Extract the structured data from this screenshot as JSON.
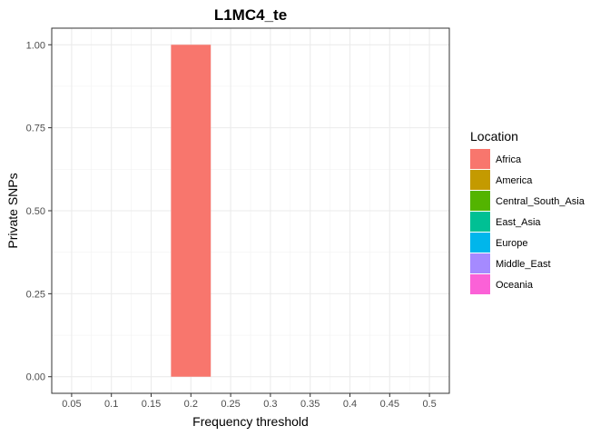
{
  "chart_data": {
    "type": "bar",
    "title": "L1MC4_te",
    "xlabel": "Frequency threshold",
    "ylabel": "Private SNPs",
    "x_ticks": [
      "0.05",
      "0.1",
      "0.15",
      "0.2",
      "0.25",
      "0.3",
      "0.35",
      "0.4",
      "0.45",
      "0.5"
    ],
    "y_ticks": [
      "0.00",
      "0.25",
      "0.50",
      "0.75",
      "1.00"
    ],
    "xlim": [
      0.025,
      0.525
    ],
    "ylim": [
      -0.05,
      1.05
    ],
    "grid": true,
    "legend_position": "right",
    "series": [
      {
        "name": "Africa",
        "color": "#F8766D",
        "points": [
          {
            "x": 0.2,
            "y": 1.0
          }
        ]
      },
      {
        "name": "America",
        "color": "#C49A00",
        "points": []
      },
      {
        "name": "Central_South_Asia",
        "color": "#53B400",
        "points": []
      },
      {
        "name": "East_Asia",
        "color": "#00C094",
        "points": []
      },
      {
        "name": "Europe",
        "color": "#00B6EB",
        "points": []
      },
      {
        "name": "Middle_East",
        "color": "#A58AFF",
        "points": []
      },
      {
        "name": "Oceania",
        "color": "#FB61D7",
        "points": []
      }
    ],
    "bar_width": 0.05,
    "legend_title": "Location"
  }
}
